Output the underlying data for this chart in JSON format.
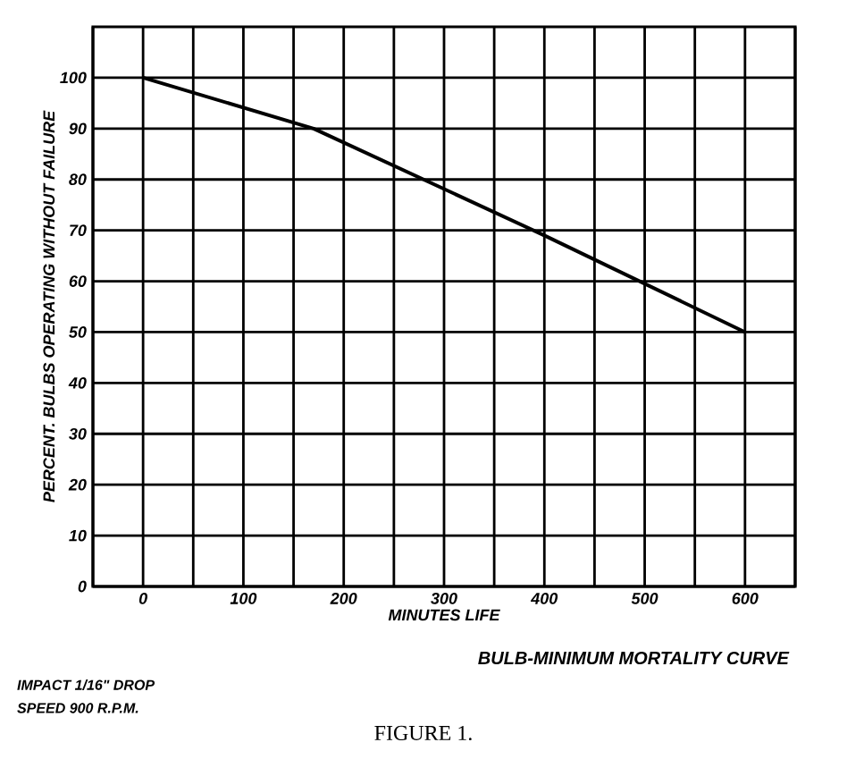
{
  "chart_data": {
    "type": "line",
    "title": "BULB-MINIMUM MORTALITY CURVE",
    "xlabel": "MINUTES LIFE",
    "ylabel": "PERCENT. BULBS OPERATING WITHOUT FAILURE",
    "annotations": [
      "IMPACT 1/16\" DROP",
      "SPEED 900 R.P.M.",
      "FIGURE 1."
    ],
    "x": [
      0,
      170,
      400,
      600
    ],
    "series": [
      {
        "color": "#000000",
        "values": [
          100,
          90,
          69,
          50
        ]
      }
    ],
    "xlim": [
      -50,
      650
    ],
    "ylim": [
      0,
      110
    ],
    "xticks": [
      0,
      100,
      200,
      300,
      400,
      500,
      600
    ],
    "yticks": [
      0,
      10,
      20,
      30,
      40,
      50,
      60,
      70,
      80,
      90,
      100
    ],
    "grid": true,
    "marker": "none",
    "line_style": "solid"
  }
}
